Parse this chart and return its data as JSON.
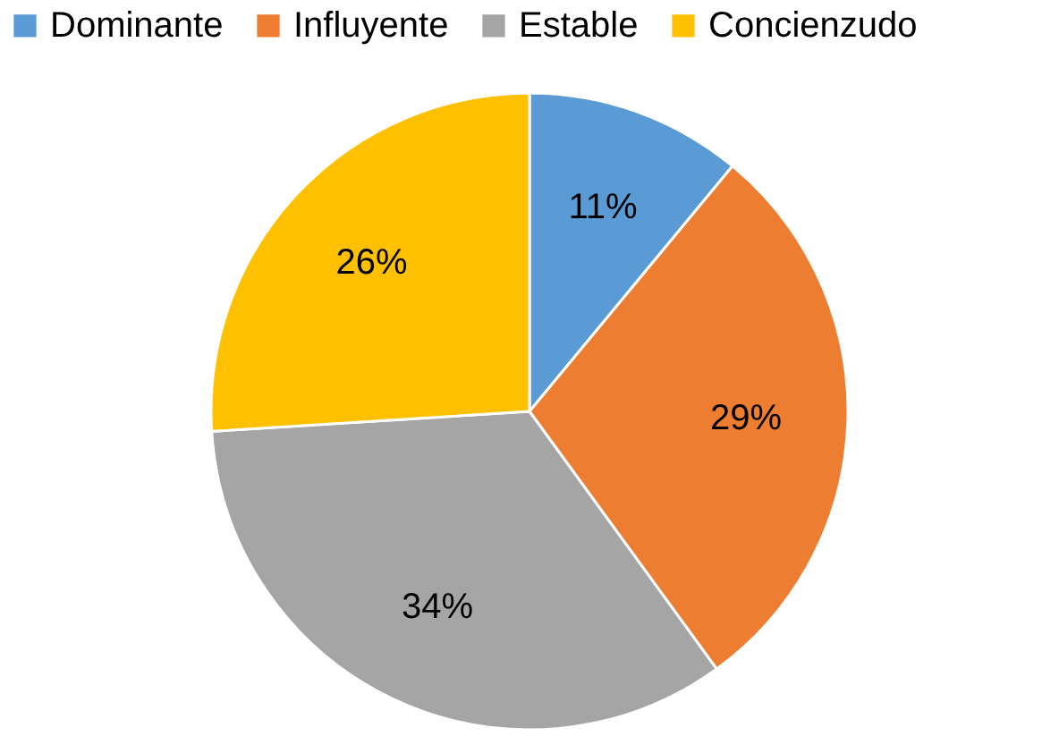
{
  "chart_data": {
    "type": "pie",
    "categories": [
      "Dominante",
      "Influyente",
      "Estable",
      "Concienzudo"
    ],
    "values": [
      11,
      29,
      34,
      26
    ],
    "colors": [
      "#5b9bd5",
      "#ed7d31",
      "#a5a5a5",
      "#ffc000"
    ],
    "value_labels": [
      "11%",
      "29%",
      "34%",
      "26%"
    ],
    "legend": "top"
  }
}
